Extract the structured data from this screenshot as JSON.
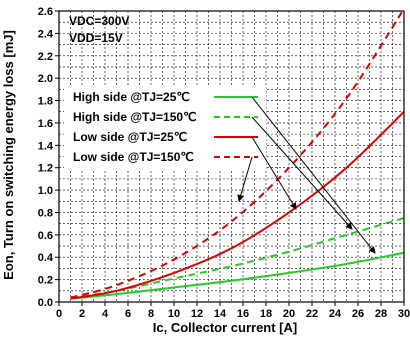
{
  "chart_data": {
    "type": "line",
    "xlabel": "Ic, Collector current [A]",
    "ylabel": "Eon, Turn on switching energy loss [mJ]",
    "xlim": [
      0,
      30
    ],
    "ylim": [
      0,
      2.6
    ],
    "xticks": [
      0,
      2,
      4,
      6,
      8,
      10,
      12,
      14,
      16,
      18,
      20,
      22,
      24,
      26,
      28,
      30
    ],
    "yticks": [
      0.0,
      0.2,
      0.4,
      0.6,
      0.8,
      1.0,
      1.2,
      1.4,
      1.6,
      1.8,
      2.0,
      2.2,
      2.4,
      2.6
    ],
    "conditions": [
      "VDC=300V",
      "VDD=15V"
    ],
    "grid": true,
    "legend_position": "upper-left",
    "series": [
      {
        "name": "High side @TJ=25℃",
        "color": "#22cc22",
        "dash": "solid",
        "x": [
          1,
          5,
          10,
          15,
          20,
          25,
          30
        ],
        "y": [
          0.03,
          0.07,
          0.13,
          0.19,
          0.26,
          0.34,
          0.44
        ]
      },
      {
        "name": "High side @TJ=150℃",
        "color": "#22cc22",
        "dash": "dashed",
        "x": [
          1,
          5,
          10,
          15,
          20,
          25,
          30
        ],
        "y": [
          0.04,
          0.1,
          0.21,
          0.32,
          0.45,
          0.6,
          0.75
        ]
      },
      {
        "name": "Low side @TJ=25℃",
        "color": "#dd0000",
        "dash": "solid",
        "x": [
          1,
          5,
          10,
          15,
          20,
          25,
          30
        ],
        "y": [
          0.03,
          0.1,
          0.26,
          0.48,
          0.8,
          1.2,
          1.7
        ]
      },
      {
        "name": "Low side @TJ=150℃",
        "color": "#dd0000",
        "dash": "dashed",
        "x": [
          1,
          5,
          10,
          15,
          20,
          25,
          30
        ],
        "y": [
          0.04,
          0.15,
          0.38,
          0.72,
          1.2,
          1.82,
          2.62
        ]
      }
    ]
  }
}
